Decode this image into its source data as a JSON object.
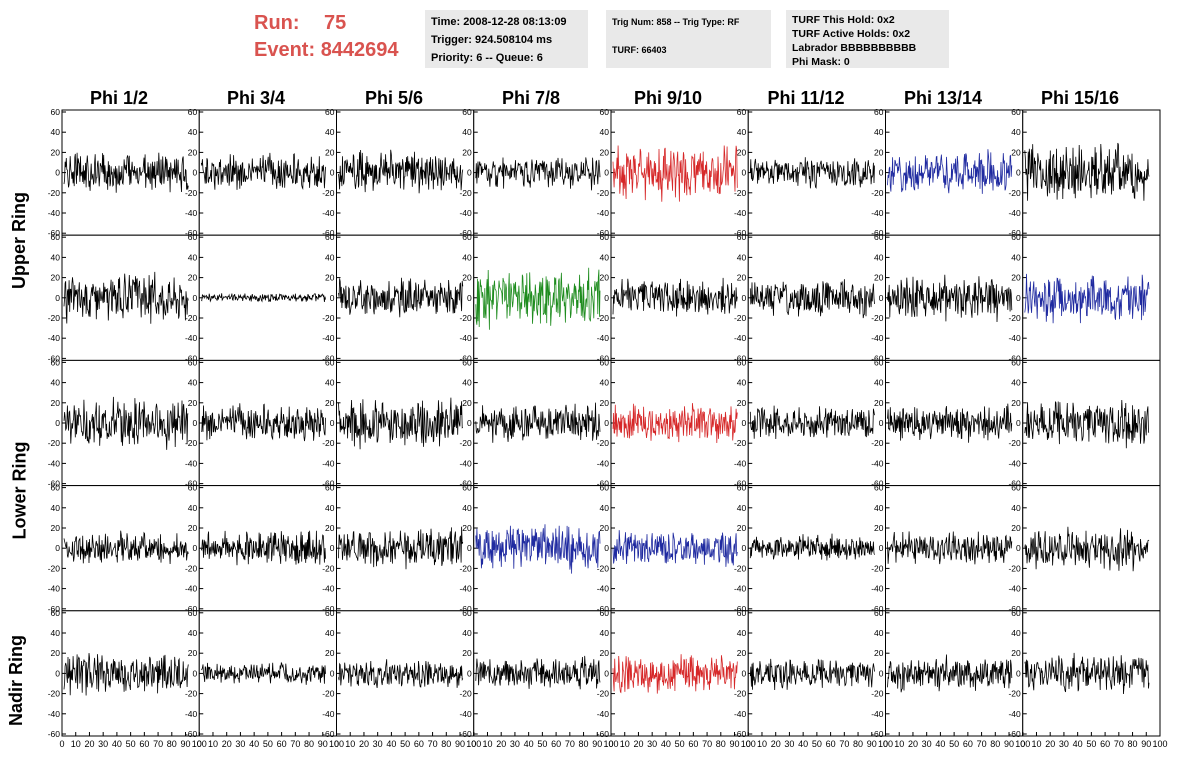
{
  "header": {
    "run_label": "Run:",
    "run_value": "75",
    "event_label": "Event:",
    "event_value": "8442694"
  },
  "time_box": {
    "time": "Time: 2008-12-28 08:13:09",
    "trigger": "Trigger: 924.508104 ms",
    "priority": "Priority: 6 -- Queue: 6"
  },
  "trig_box": {
    "trig": "Trig Num: 858 -- Trig Type: RF",
    "turf": "TURF: 66403"
  },
  "turf_box": {
    "this_hold": "TURF This Hold: 0x2",
    "active_holds": "TURF Active Holds: 0x2",
    "labrador": "Labrador BBBBBBBBBB",
    "phi_mask": "Phi Mask: 0"
  },
  "phi_columns": [
    "Phi 1/2",
    "Phi 3/4",
    "Phi 5/6",
    "Phi 7/8",
    "Phi 9/10",
    "Phi 11/12",
    "Phi 13/14",
    "Phi 15/16"
  ],
  "ring_labels": {
    "upper": "Upper Ring",
    "lower": "Lower Ring",
    "nadir": "Nadir Ring"
  },
  "y_ticks": [
    "60",
    "40",
    "20",
    "0",
    "-20",
    "-40",
    "-60"
  ],
  "x_ticks": [
    "0",
    "10",
    "20",
    "30",
    "40",
    "50",
    "60",
    "70",
    "80",
    "90",
    "100"
  ],
  "colors": {
    "run_text": "#d9534f",
    "trace_default": "#000000",
    "trace_red": "#d62728",
    "trace_blue": "#1f2aa0",
    "trace_green": "#1e8c1e",
    "panel_bg": "#e9e9e9"
  },
  "chart_data": {
    "type": "line",
    "xlim": [
      0,
      100
    ],
    "ylim": [
      -60,
      60
    ],
    "rows": 5,
    "cols": 8,
    "highlighted_traces": [
      {
        "row": 0,
        "col": 4,
        "color": "red"
      },
      {
        "row": 0,
        "col": 6,
        "color": "blue"
      },
      {
        "row": 1,
        "col": 3,
        "color": "green"
      },
      {
        "row": 1,
        "col": 7,
        "color": "blue"
      },
      {
        "row": 2,
        "col": 4,
        "color": "red"
      },
      {
        "row": 3,
        "col": 3,
        "color": "blue"
      },
      {
        "row": 3,
        "col": 4,
        "color": "blue"
      },
      {
        "row": 4,
        "col": 4,
        "color": "red"
      }
    ],
    "amplitudes": [
      [
        15,
        14,
        16,
        12,
        20,
        12,
        16,
        22
      ],
      [
        18,
        3,
        14,
        22,
        14,
        14,
        16,
        18
      ],
      [
        18,
        14,
        18,
        14,
        15,
        12,
        14,
        18
      ],
      [
        12,
        14,
        15,
        18,
        13,
        10,
        12,
        16
      ],
      [
        16,
        8,
        10,
        12,
        14,
        12,
        13,
        14
      ]
    ]
  }
}
